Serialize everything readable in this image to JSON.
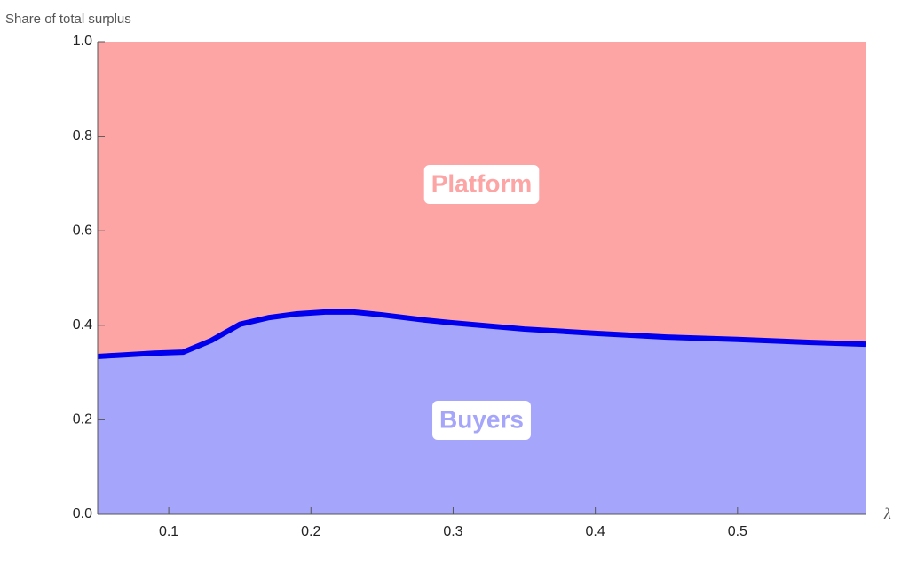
{
  "chart_data": {
    "type": "area",
    "title": "Share of total surplus",
    "x_label": "λ",
    "x": [
      0.05,
      0.09,
      0.11,
      0.13,
      0.15,
      0.17,
      0.19,
      0.21,
      0.23,
      0.25,
      0.28,
      0.3,
      0.35,
      0.4,
      0.45,
      0.5,
      0.55,
      0.59
    ],
    "series": [
      {
        "values": [
          0.334,
          0.341,
          0.343,
          0.368,
          0.402,
          0.416,
          0.424,
          0.428,
          0.428,
          0.422,
          0.411,
          0.405,
          0.392,
          0.383,
          0.375,
          0.37,
          0.364,
          0.36
        ],
        "color": "#0000ee"
      }
    ],
    "fill_below": "#a5a5fb",
    "fill_above": "#fda5a5",
    "annotations": [
      "Platform",
      "Buyers"
    ],
    "annotation_colors": [
      "#fda5a5",
      "#a5a5fb"
    ],
    "xlim": [
      0.05,
      0.59
    ],
    "ylim": [
      0,
      1
    ],
    "xticks": [
      0.1,
      0.2,
      0.3,
      0.4,
      0.5
    ],
    "yticks": [
      {
        "value": 0,
        "label": "0.0"
      },
      0.2,
      0.4,
      0.6,
      0.8,
      {
        "value": 1,
        "label": "1.0"
      }
    ]
  }
}
